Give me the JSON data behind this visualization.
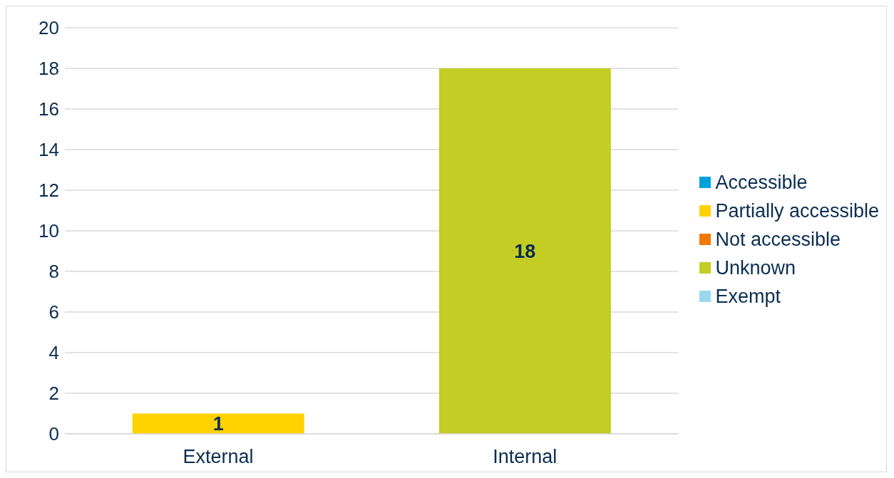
{
  "chart_data": {
    "type": "bar",
    "stacked": true,
    "categories": [
      "External",
      "Internal"
    ],
    "series": [
      {
        "name": "Accessible",
        "color": "#00a0dc",
        "values": [
          0,
          0
        ],
        "value_labels": [
          null,
          null
        ]
      },
      {
        "name": "Partially accessible",
        "color": "#ffd200",
        "values": [
          1,
          0
        ],
        "value_labels": [
          "1",
          null
        ]
      },
      {
        "name": "Not accessible",
        "color": "#f07800",
        "values": [
          0,
          0
        ],
        "value_labels": [
          null,
          null
        ]
      },
      {
        "name": "Unknown",
        "color": "#c3cd23",
        "values": [
          0,
          18
        ],
        "value_labels": [
          null,
          "18"
        ]
      },
      {
        "name": "Exempt",
        "color": "#9bd7f0",
        "values": [
          0,
          0
        ],
        "value_labels": [
          null,
          null
        ]
      }
    ],
    "ylim": [
      0,
      20
    ],
    "yticks": [
      0,
      2,
      4,
      6,
      8,
      10,
      12,
      14,
      16,
      18,
      20
    ],
    "grid": "y",
    "legend": "right"
  }
}
